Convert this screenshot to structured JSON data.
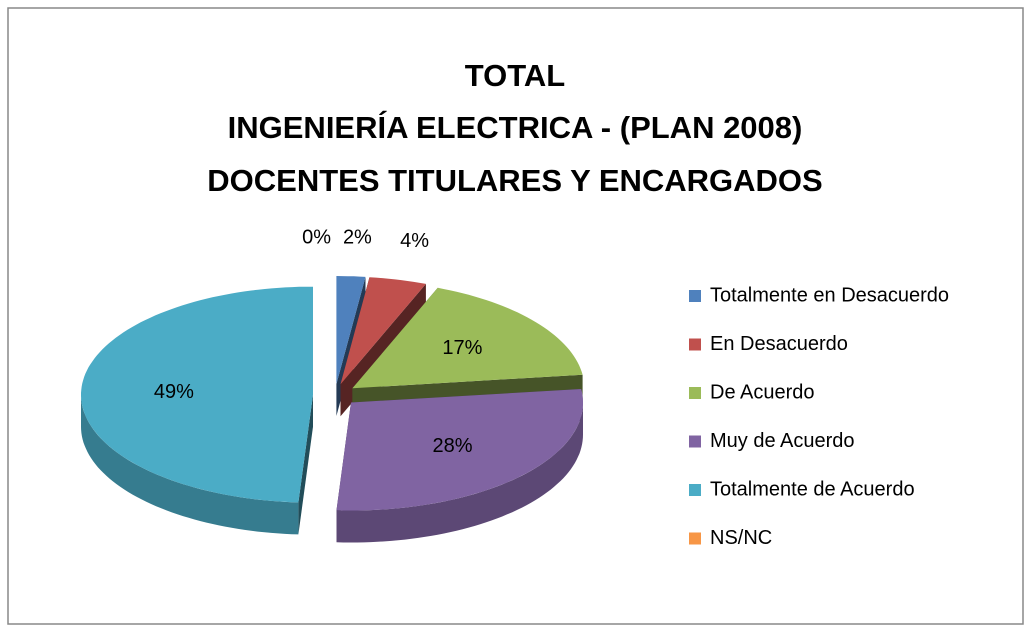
{
  "chart_data": {
    "type": "pie",
    "title": [
      "TOTAL",
      "INGENIERÍA ELECTRICA - (PLAN 2008)",
      "DOCENTES TITULARES Y ENCARGADOS"
    ],
    "categories": [
      "Totalmente en Desacuerdo",
      "En Desacuerdo",
      "De Acuerdo",
      "Muy de Acuerdo",
      "Totalmente de Acuerdo",
      "NS/NC"
    ],
    "values": [
      2,
      4,
      17,
      28,
      49,
      0
    ],
    "value_labels": [
      "2%",
      "4%",
      "17%",
      "28%",
      "49%",
      "0%"
    ],
    "colors": [
      "#4f81bd",
      "#c0504d",
      "#9bbb59",
      "#8064a2",
      "#4bacc6",
      "#f79646"
    ],
    "legend": "right"
  }
}
